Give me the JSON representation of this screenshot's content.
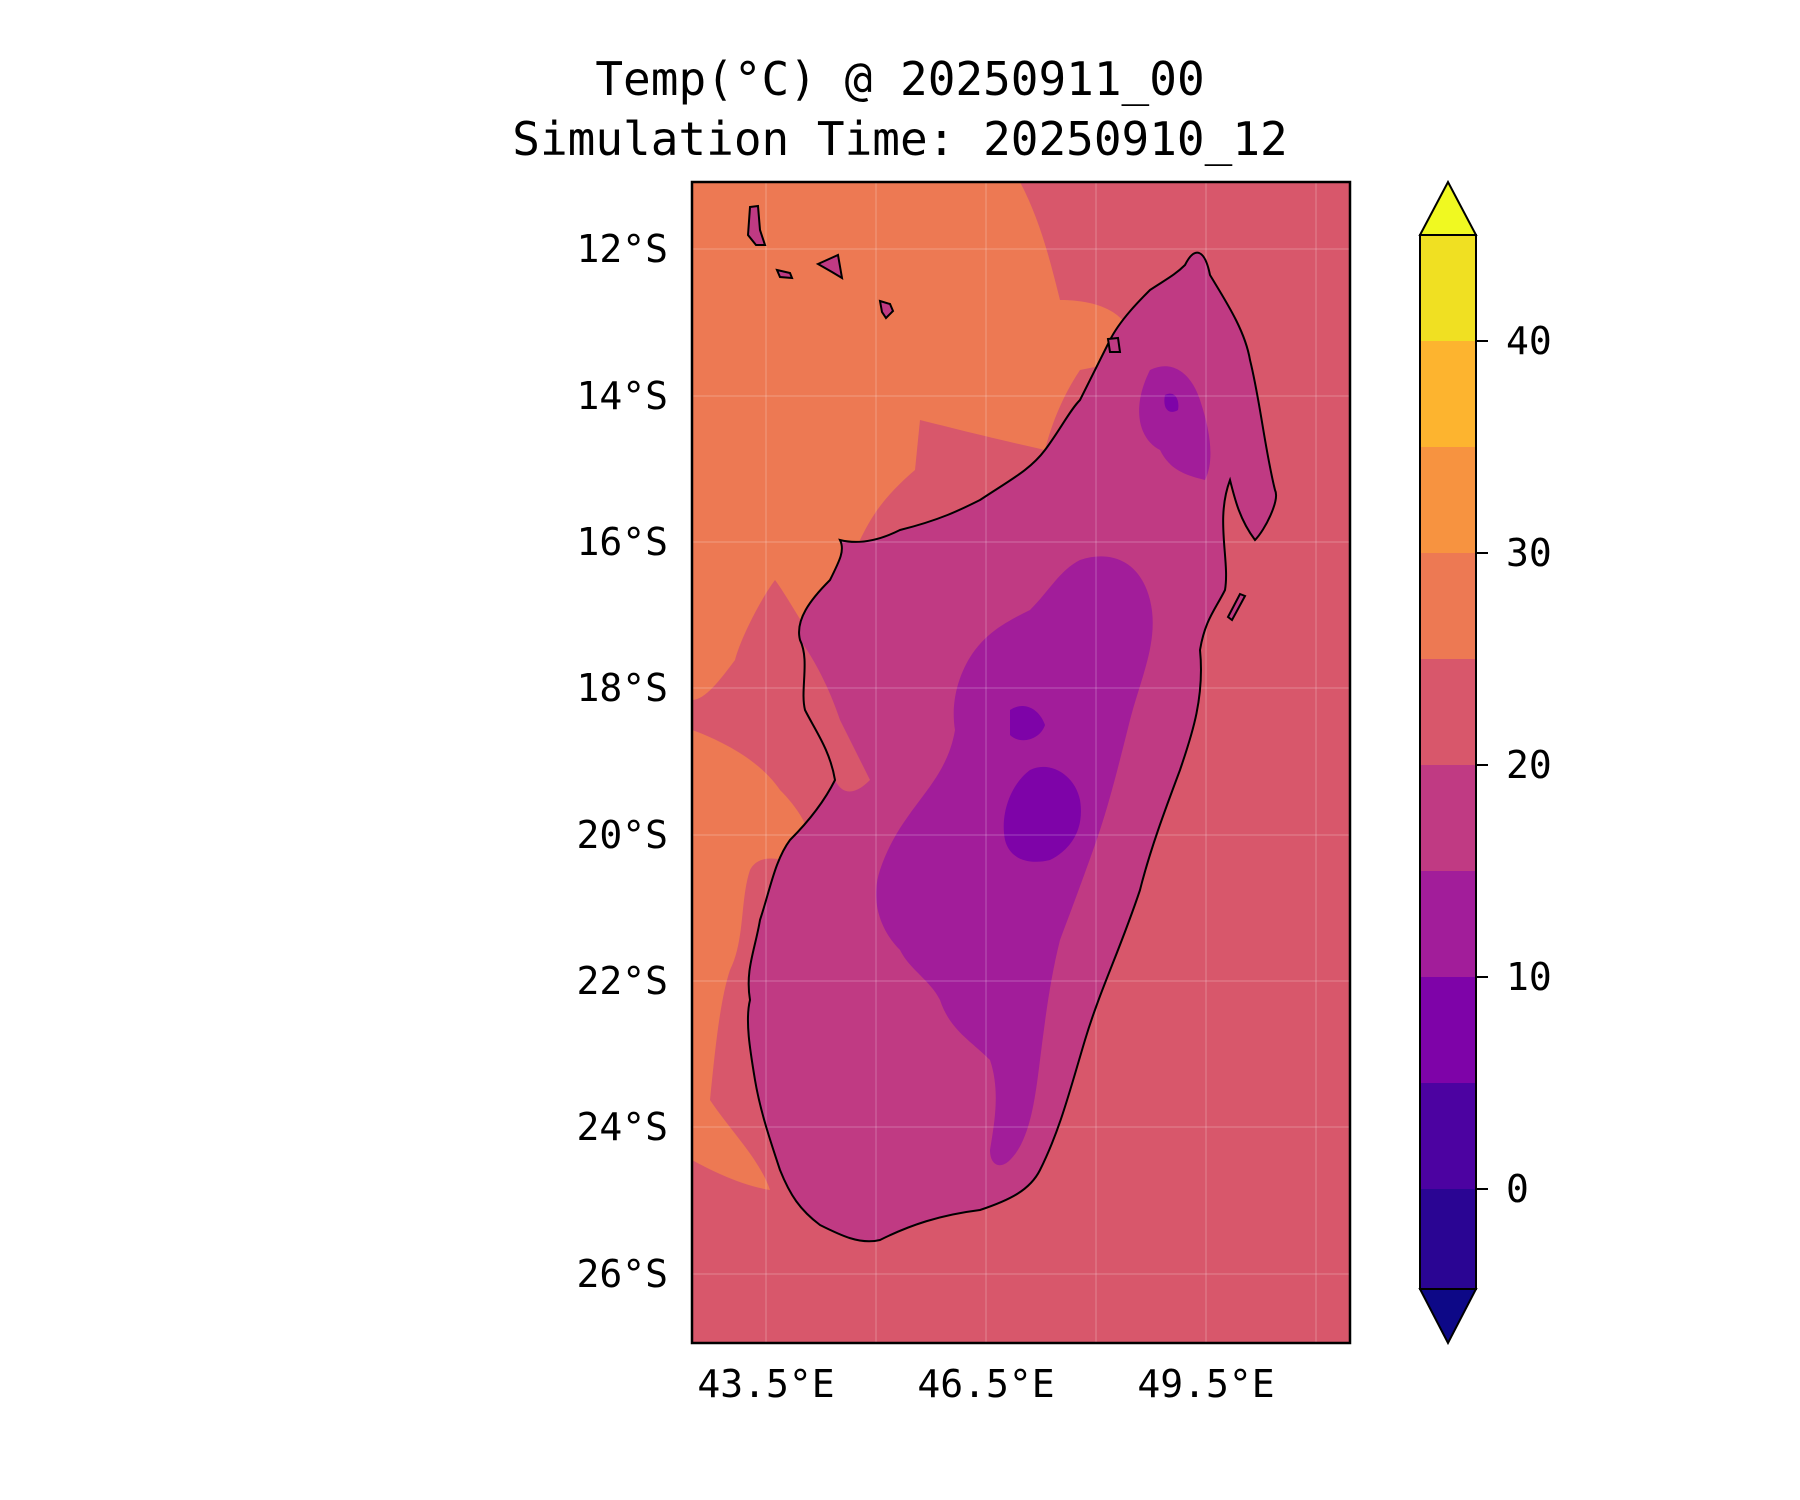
{
  "title": {
    "line1": "Temp(°C) @ 20250911_00",
    "line2": "Simulation Time: 20250910_12"
  },
  "map": {
    "region": "Madagascar",
    "lon_range": [
      42.8,
      51.8
    ],
    "lat_range": [
      -27.0,
      -11.1
    ],
    "lat_ticks": [
      "12°S",
      "14°S",
      "16°S",
      "18°S",
      "20°S",
      "22°S",
      "24°S",
      "26°S"
    ],
    "lon_ticks": [
      "43.5°E",
      "46.5°E",
      "49.5°E"
    ]
  },
  "colorbar": {
    "label_ticks": [
      "40",
      "30",
      "20",
      "10",
      "0"
    ],
    "levels": [
      -5,
      0,
      5,
      10,
      15,
      20,
      25,
      30,
      35,
      40,
      45
    ],
    "colors": [
      "#0d0887",
      "#2a0593",
      "#4c02a1",
      "#7e03a8",
      "#a21d9a",
      "#c03a83",
      "#d8576b",
      "#ed7953",
      "#fb9f3a",
      "#fdc328",
      "#f0f921"
    ],
    "extend": "both"
  }
}
